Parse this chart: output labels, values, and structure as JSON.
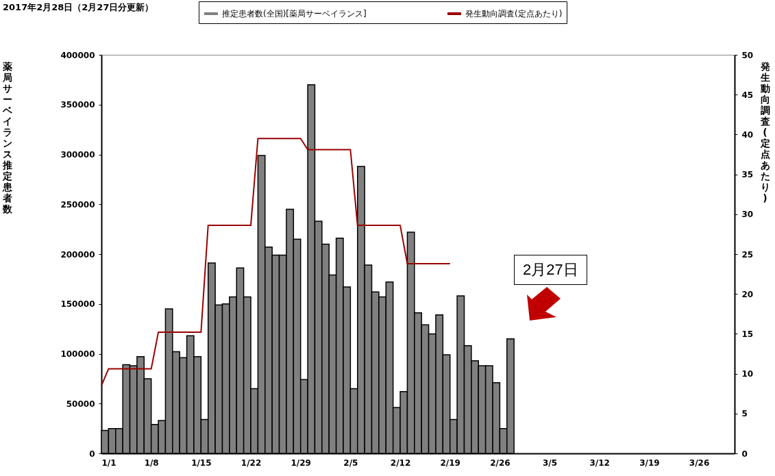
{
  "chart_data": {
    "type": "bar",
    "title": "2017年2月28日（2月27日分更新）",
    "ylabel": "薬局サーベイランス推定患者数",
    "y2label": "発生動向調査(定点あたり)",
    "x": [
      "2017-01-01",
      "2017-01-02",
      "2017-01-03",
      "2017-01-04",
      "2017-01-05",
      "2017-01-06",
      "2017-01-07",
      "2017-01-08",
      "2017-01-09",
      "2017-01-10",
      "2017-01-11",
      "2017-01-12",
      "2017-01-13",
      "2017-01-14",
      "2017-01-15",
      "2017-01-16",
      "2017-01-17",
      "2017-01-18",
      "2017-01-19",
      "2017-01-20",
      "2017-01-21",
      "2017-01-22",
      "2017-01-23",
      "2017-01-24",
      "2017-01-25",
      "2017-01-26",
      "2017-01-27",
      "2017-01-28",
      "2017-01-29",
      "2017-01-30",
      "2017-01-31",
      "2017-02-01",
      "2017-02-02",
      "2017-02-03",
      "2017-02-04",
      "2017-02-05",
      "2017-02-06",
      "2017-02-07",
      "2017-02-08",
      "2017-02-09",
      "2017-02-10",
      "2017-02-11",
      "2017-02-12",
      "2017-02-13",
      "2017-02-14",
      "2017-02-15",
      "2017-02-16",
      "2017-02-17",
      "2017-02-18",
      "2017-02-19",
      "2017-02-20",
      "2017-02-21",
      "2017-02-22",
      "2017-02-23",
      "2017-02-24",
      "2017-02-25",
      "2017-02-26",
      "2017-02-27"
    ],
    "series": [
      {
        "name": "推定患者数(全国)[薬局サーベイランス]",
        "color": "#808080",
        "values": [
          23000,
          25000,
          25000,
          89000,
          88000,
          97000,
          75000,
          29000,
          33000,
          145000,
          102000,
          96000,
          118000,
          97000,
          34000,
          191000,
          149000,
          150000,
          157000,
          186000,
          157000,
          65000,
          299000,
          207000,
          199000,
          199000,
          245000,
          215000,
          74000,
          370000,
          233000,
          210000,
          179000,
          216000,
          167000,
          65000,
          288000,
          189000,
          162000,
          157000,
          172000,
          46000,
          62000,
          222000,
          141000,
          129000,
          120000,
          139000,
          99000,
          34000,
          158000,
          108000,
          93000,
          88000,
          88000,
          71000,
          25000,
          115000
        ]
      },
      {
        "name": "発生動向調査(定点あたり)",
        "type": "line",
        "axis": "y2",
        "color": "#990000",
        "x": [
          "2017-01-01",
          "2017-01-02",
          "2017-01-08",
          "2017-01-09",
          "2017-01-15",
          "2017-01-16",
          "2017-01-22",
          "2017-01-23",
          "2017-01-29",
          "2017-01-30",
          "2017-02-05",
          "2017-02-06",
          "2017-02-12",
          "2017-02-13",
          "2017-02-19"
        ],
        "values": [
          8.5,
          10.6,
          10.6,
          15.2,
          15.2,
          28.6,
          28.6,
          39.5,
          39.5,
          38.1,
          38.1,
          28.6,
          28.6,
          23.8,
          23.8
        ]
      }
    ],
    "xlim": [
      "2017-01-01",
      "2017-03-31"
    ],
    "xticks": [
      {
        "value": "2017-01-01",
        "label": "1/1"
      },
      {
        "value": "2017-01-08",
        "label": "1/8"
      },
      {
        "value": "2017-01-15",
        "label": "1/15"
      },
      {
        "value": "2017-01-22",
        "label": "1/22"
      },
      {
        "value": "2017-01-29",
        "label": "1/29"
      },
      {
        "value": "2017-02-05",
        "label": "2/5"
      },
      {
        "value": "2017-02-12",
        "label": "2/12"
      },
      {
        "value": "2017-02-19",
        "label": "2/19"
      },
      {
        "value": "2017-02-26",
        "label": "2/26"
      },
      {
        "value": "2017-03-05",
        "label": "3/5"
      },
      {
        "value": "2017-03-12",
        "label": "3/12"
      },
      {
        "value": "2017-03-19",
        "label": "3/19"
      },
      {
        "value": "2017-03-26",
        "label": "3/26"
      }
    ],
    "ylim": [
      0,
      400000
    ],
    "yticks": [
      0,
      50000,
      100000,
      150000,
      200000,
      250000,
      300000,
      350000,
      400000
    ],
    "y2lim": [
      0,
      50
    ],
    "y2ticks": [
      0,
      5,
      10,
      15,
      20,
      25,
      30,
      35,
      40,
      45,
      50
    ],
    "legend": "top",
    "annotations": [
      "2月27日"
    ]
  }
}
